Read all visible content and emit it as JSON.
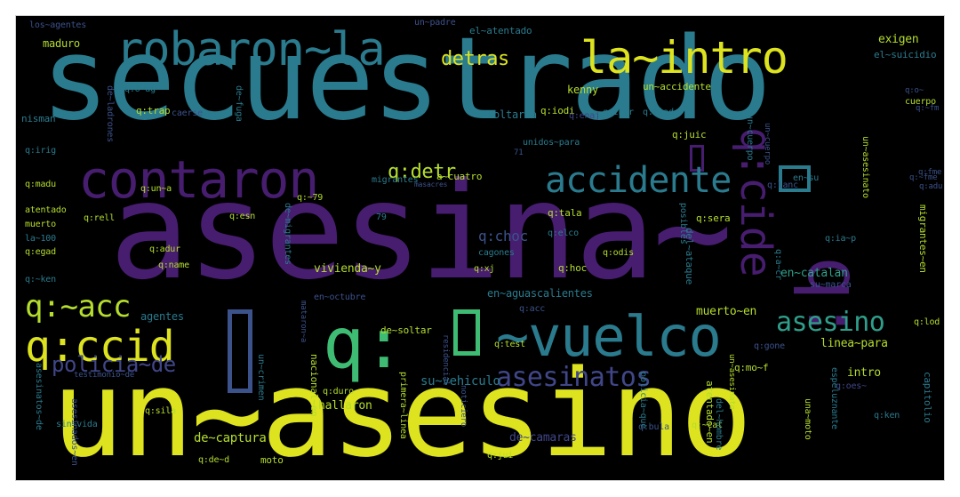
{
  "palette": {
    "background": "#000000",
    "yellow": "#dde31e",
    "lime": "#b4dd2c",
    "green": "#3ebc73",
    "teal": "#2a7b8e",
    "teal_light": "#2f9e8a",
    "blue": "#3b528b",
    "indigo": "#404688",
    "purple": "#471d6f",
    "dark_purple": "#44015a"
  },
  "words": [
    {
      "text": "secuestrado",
      "color": "#2a7b8e"
    },
    {
      "text": "asesina~",
      "color": "#471d6f"
    },
    {
      "text": "un~asesino",
      "color": "#dde31e"
    },
    {
      "text": "robaron~la",
      "color": "#2a7b8e"
    },
    {
      "text": "la~intro",
      "color": "#dde31e"
    },
    {
      "text": "contaron",
      "color": "#471d6f"
    },
    {
      "text": "accidente",
      "color": "#2a7b8e"
    },
    {
      "text": "q:~acc",
      "color": "#b4dd2c"
    },
    {
      "text": "q:ccid",
      "color": "#dde31e"
    },
    {
      "text": "q:",
      "color": "#3ebc73"
    },
    {
      "text": "~vuelco",
      "color": "#2a7b8e"
    },
    {
      "text": "q:",
      "color": "#471d6f"
    },
    {
      "text": "q:cide",
      "color": "#471d6f"
    },
    {
      "text": "asesinatos",
      "color": "#404688"
    },
    {
      "text": "asesino",
      "color": "#2f9e8a"
    },
    {
      "text": "policia~de",
      "color": "#404688"
    },
    {
      "text": "detras",
      "color": "#dde31e"
    },
    {
      "text": "q:detr",
      "color": "#b4dd2c"
    },
    {
      "text": "en~catalan",
      "color": "#2f9e8a"
    },
    {
      "text": "q:choc",
      "color": "#3b528b"
    },
    {
      "text": "vivienda~y",
      "color": "#b4dd2c"
    },
    {
      "text": "agentes",
      "color": "#2a7b8e"
    },
    {
      "text": "muerto~en",
      "color": "#b4dd2c"
    },
    {
      "text": "en~aguascalientes",
      "color": "#2a7b8e"
    },
    {
      "text": "de~captura",
      "color": "#b4dd2c"
    },
    {
      "text": "su~vehiculo",
      "color": "#2a7b8e"
    },
    {
      "text": "de~camaras",
      "color": "#404688"
    },
    {
      "text": "hallaron",
      "color": "#b4dd2c"
    },
    {
      "text": "linea~para",
      "color": "#b4dd2c"
    },
    {
      "text": "intro",
      "color": "#b4dd2c"
    },
    {
      "text": "kenny",
      "color": "#b4dd2c"
    },
    {
      "text": "soltar~a",
      "color": "#2a7b8e"
    },
    {
      "text": "un~accidente",
      "color": "#b4dd2c"
    },
    {
      "text": "exigen",
      "color": "#b4dd2c"
    },
    {
      "text": "el~suicidio",
      "color": "#2a7b8e"
    },
    {
      "text": "maduro",
      "color": "#b4dd2c"
    },
    {
      "text": "los~agentes",
      "color": "#3b528b"
    },
    {
      "text": "el~atentado",
      "color": "#2a7b8e"
    },
    {
      "text": "un~padre",
      "color": "#3b528b"
    },
    {
      "text": "nisman",
      "color": "#2a7b8e"
    },
    {
      "text": "q:o~ag",
      "color": "#2a7b8e"
    },
    {
      "text": "q:trap",
      "color": "#b4dd2c"
    },
    {
      "text": "q:iodi",
      "color": "#b4dd2c"
    },
    {
      "text": "q:enaj",
      "color": "#404688"
    },
    {
      "text": "q:intr",
      "color": "#2a7b8e"
    },
    {
      "text": "q:riad",
      "color": "#2a7b8e"
    },
    {
      "text": "un~cuerpo",
      "color": "#2a7b8e"
    },
    {
      "text": "q:juic",
      "color": "#b4dd2c"
    },
    {
      "text": "q:irig",
      "color": "#2a7b8e"
    },
    {
      "text": "q:madu",
      "color": "#b4dd2c"
    },
    {
      "text": "atentado",
      "color": "#b4dd2c"
    },
    {
      "text": "muerto",
      "color": "#b4dd2c"
    },
    {
      "text": "la~100",
      "color": "#2a7b8e"
    },
    {
      "text": "q:egad",
      "color": "#b4dd2c"
    },
    {
      "text": "q:~ken",
      "color": "#2a7b8e"
    },
    {
      "text": "q:un~a",
      "color": "#b4dd2c"
    },
    {
      "text": "q:rell",
      "color": "#b4dd2c"
    },
    {
      "text": "q:adur",
      "color": "#b4dd2c"
    },
    {
      "text": "q:name",
      "color": "#b4dd2c"
    },
    {
      "text": "q:esn",
      "color": "#b4dd2c"
    },
    {
      "text": "q:~79",
      "color": "#b4dd2c"
    },
    {
      "text": "79",
      "color": "#2a7b8e"
    },
    {
      "text": "migrantes",
      "color": "#2a7b8e"
    },
    {
      "text": "a~cuatro",
      "color": "#b4dd2c"
    },
    {
      "text": "unidos~para",
      "color": "#2a7b8e"
    },
    {
      "text": "cagones",
      "color": "#2a7b8e"
    },
    {
      "text": "q:xj",
      "color": "#b4dd2c"
    },
    {
      "text": "q:tala",
      "color": "#b4dd2c"
    },
    {
      "text": "q:elco",
      "color": "#2a7b8e"
    },
    {
      "text": "q:hoc",
      "color": "#b4dd2c"
    },
    {
      "text": "q:odis",
      "color": "#b4dd2c"
    },
    {
      "text": "q:sera",
      "color": "#b4dd2c"
    },
    {
      "text": "q:ia~p",
      "color": "#2a7b8e"
    },
    {
      "text": "q:lanc",
      "color": "#3b528b"
    },
    {
      "text": "en~su",
      "color": "#2a7b8e"
    },
    {
      "text": "su~marca",
      "color": "#3b528b"
    },
    {
      "text": "en~octubre",
      "color": "#3b528b"
    },
    {
      "text": "de~soltar",
      "color": "#b4dd2c"
    },
    {
      "text": "q:test",
      "color": "#b4dd2c"
    },
    {
      "text": "q:acc",
      "color": "#3b528b"
    },
    {
      "text": "q:duro",
      "color": "#b4dd2c"
    },
    {
      "text": "q:mo~f",
      "color": "#b4dd2c"
    },
    {
      "text": "q:gone",
      "color": "#3b528b"
    },
    {
      "text": "q:lod",
      "color": "#b4dd2c"
    },
    {
      "text": "q:oes~",
      "color": "#404688"
    },
    {
      "text": "q:ken",
      "color": "#2a7b8e"
    },
    {
      "text": "q:~cat",
      "color": "#b4dd2c"
    },
    {
      "text": "q:bula",
      "color": "#3b528b"
    },
    {
      "text": "q:jui",
      "color": "#b4dd2c"
    },
    {
      "text": "q:sila",
      "color": "#b4dd2c"
    },
    {
      "text": "q:de~d",
      "color": "#b4dd2c"
    },
    {
      "text": "moto",
      "color": "#b4dd2c"
    },
    {
      "text": "sin~vida",
      "color": "#2a7b8e"
    },
    {
      "text": "asesinados~en",
      "color": "#3b528b"
    },
    {
      "text": "testimonio~de",
      "color": "#3b528b"
    },
    {
      "text": "cuerpo",
      "color": "#b4dd2c"
    },
    {
      "text": "caerse",
      "color": "#3b528b"
    },
    {
      "text": "de~ladrones",
      "color": "#3b528b"
    },
    {
      "text": "de~fuga",
      "color": "#2a7b8e"
    },
    {
      "text": "masacres",
      "color": "#3b528b"
    },
    {
      "text": "71",
      "color": "#3b528b"
    },
    {
      "text": "q:~fm",
      "color": "#3b528b"
    },
    {
      "text": "q:fme",
      "color": "#3b528b"
    },
    {
      "text": "q:adu",
      "color": "#3b528b"
    },
    {
      "text": "q:o~",
      "color": "#3b528b"
    },
    {
      "text": "atentado~en",
      "color": "#b4dd2c"
    },
    {
      "text": "policia~que",
      "color": "#2a7b8e"
    },
    {
      "text": "una~moto",
      "color": "#b4dd2c"
    },
    {
      "text": "posibles",
      "color": "#2a7b8e"
    },
    {
      "text": "un~asesinato",
      "color": "#b4dd2c"
    },
    {
      "text": "migrantes~en",
      "color": "#b4dd2c"
    },
    {
      "text": "q:a~cr",
      "color": "#2a7b8e"
    },
    {
      "text": "del~ataque",
      "color": "#2a7b8e"
    },
    {
      "text": "un~crimen",
      "color": "#2a7b8e"
    },
    {
      "text": "sera",
      "color": "#3b528b"
    },
    {
      "text": "de~migrantes",
      "color": "#2a7b8e"
    },
    {
      "text": "mataron~a",
      "color": "#3b528b"
    },
    {
      "text": "nacional~en",
      "color": "#b4dd2c"
    },
    {
      "text": "primera~linea",
      "color": "#b4dd2c"
    },
    {
      "text": "residencial",
      "color": "#3b528b"
    },
    {
      "text": "noticiero",
      "color": "#3b528b"
    },
    {
      "text": "asesinatos~de",
      "color": "#2a7b8e"
    },
    {
      "text": "del~hombre",
      "color": "#2a7b8e"
    },
    {
      "text": "espeluznante",
      "color": "#2a7b8e"
    },
    {
      "text": "capitolio",
      "color": "#2a7b8e"
    },
    {
      "text": "un~asesinato",
      "color": "#b4dd2c"
    },
    {
      "text": "un~cuerpo",
      "color": "#3b528b"
    },
    {
      "text": "q:~fme",
      "color": "#3b528b"
    }
  ]
}
